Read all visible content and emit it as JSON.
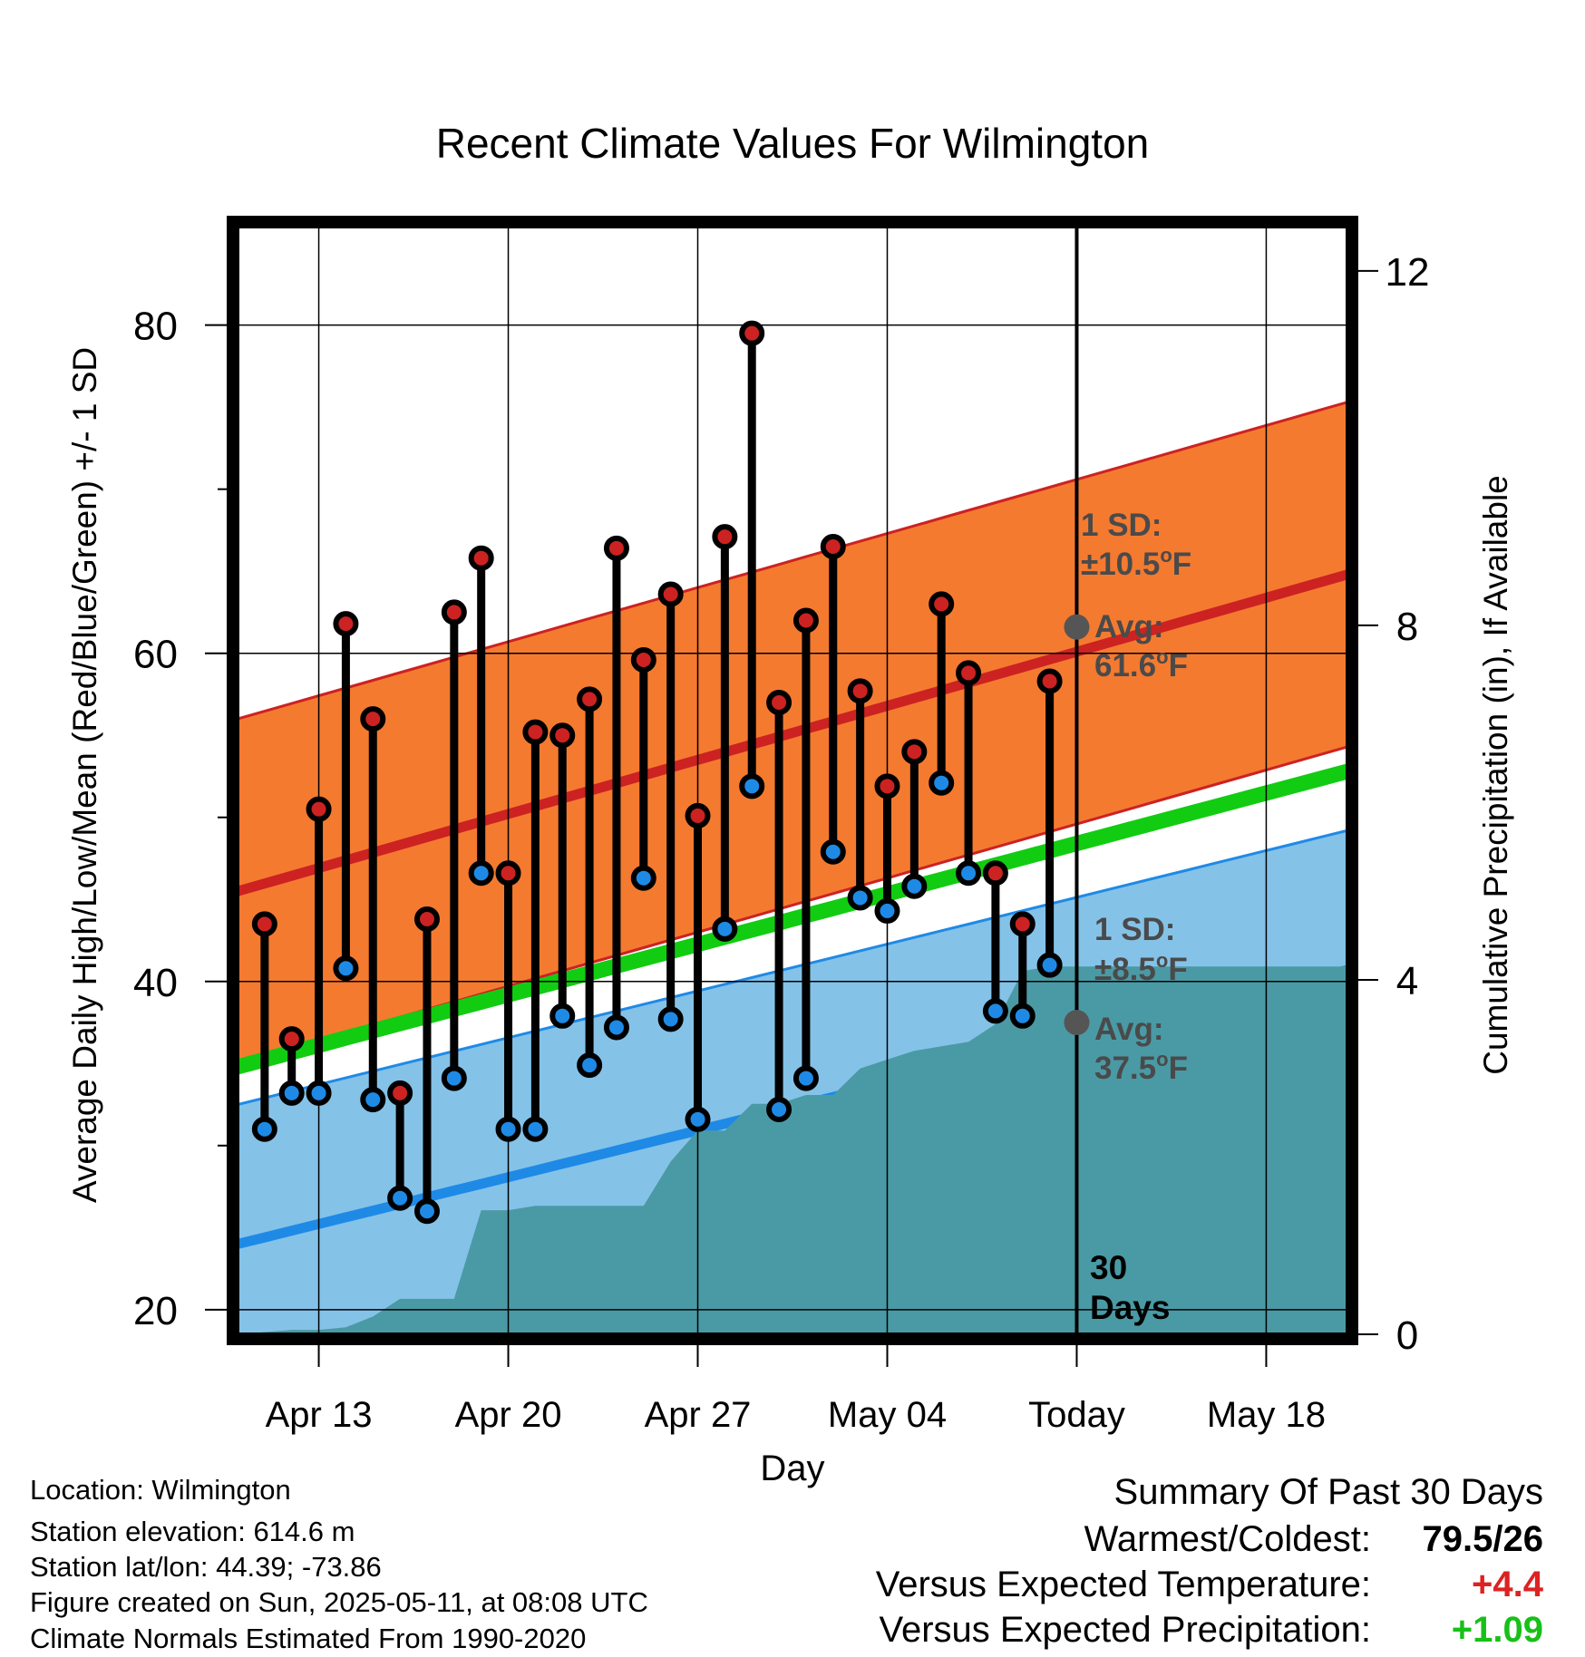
{
  "chart_data": {
    "type": "line",
    "title": "Recent Climate Values For Wilmington",
    "xlabel": "Day",
    "ylabel": "Average Daily High/Low/Mean (Red/Blue/Green) +/- 1 SD",
    "y2label": "Cumulative Precipitation (in), If Available",
    "x_ticks": [
      "Apr 13",
      "Apr 20",
      "Apr 27",
      "May 04",
      "Today",
      "May 18"
    ],
    "y_ticks": [
      20,
      40,
      60,
      80
    ],
    "y2_ticks": [
      0,
      4,
      8,
      12
    ],
    "ylim": [
      18.5,
      86
    ],
    "y2lim": [
      0,
      12.5
    ],
    "x_day_range": [
      "Apr 10",
      "May 21"
    ],
    "today": "May 11",
    "days": [
      "Apr 11",
      "Apr 12",
      "Apr 13",
      "Apr 14",
      "Apr 15",
      "Apr 16",
      "Apr 17",
      "Apr 18",
      "Apr 19",
      "Apr 20",
      "Apr 21",
      "Apr 22",
      "Apr 23",
      "Apr 24",
      "Apr 25",
      "Apr 26",
      "Apr 27",
      "Apr 28",
      "Apr 29",
      "Apr 30",
      "May 01",
      "May 02",
      "May 03",
      "May 04",
      "May 05",
      "May 06",
      "May 07",
      "May 08",
      "May 09",
      "May 10"
    ],
    "series": [
      {
        "name": "High",
        "color": "#cc2222",
        "values": [
          43.5,
          36.5,
          50.5,
          61.8,
          56.0,
          33.2,
          43.8,
          62.5,
          65.8,
          46.6,
          55.2,
          55.0,
          57.2,
          66.4,
          59.6,
          63.6,
          50.1,
          67.1,
          79.5,
          57.0,
          62.0,
          66.5,
          57.7,
          51.9,
          54.0,
          63.0,
          58.8,
          46.6,
          43.5,
          58.3
        ]
      },
      {
        "name": "Low",
        "color": "#1e8ae6",
        "values": [
          31.0,
          33.2,
          33.2,
          40.8,
          32.8,
          26.8,
          26.0,
          34.1,
          46.6,
          31.0,
          31.0,
          37.9,
          34.9,
          37.2,
          46.3,
          37.7,
          31.6,
          43.2,
          51.9,
          32.2,
          34.1,
          47.9,
          45.1,
          44.3,
          45.8,
          52.1,
          46.6,
          38.2,
          37.9,
          41.0
        ]
      }
    ],
    "normals": {
      "start_day": "Apr 10",
      "end_day": "May 21",
      "high_mean": [
        45.5,
        64.8
      ],
      "high_sd": 10.5,
      "low_mean": [
        24.0,
        40.7
      ],
      "low_sd": 8.5,
      "mean": [
        34.8,
        52.8
      ],
      "band_colors": {
        "high": "#f47a30",
        "low": "#85c2e8",
        "mean": "#12cc12"
      }
    },
    "precip_cumulative": {
      "color": "#4a9aa5",
      "days": [
        "Apr 10",
        "Apr 12",
        "Apr 13",
        "Apr 14",
        "Apr 15",
        "Apr 16",
        "Apr 17",
        "Apr 18",
        "Apr 19",
        "Apr 20",
        "Apr 21",
        "Apr 22",
        "Apr 23",
        "Apr 24",
        "Apr 25",
        "Apr 26",
        "Apr 27",
        "Apr 28",
        "Apr 29",
        "Apr 30",
        "May 01",
        "May 02",
        "May 03",
        "May 04",
        "May 05",
        "May 06",
        "May 07",
        "May 08",
        "May 09",
        "May 10",
        "May 11",
        "May 21"
      ],
      "values": [
        0,
        0.05,
        0.05,
        0.08,
        0.2,
        0.4,
        0.4,
        0.4,
        1.4,
        1.4,
        1.45,
        1.45,
        1.45,
        1.45,
        1.45,
        1.95,
        2.3,
        2.3,
        2.6,
        2.6,
        2.7,
        2.7,
        3.0,
        3.1,
        3.2,
        3.25,
        3.3,
        3.5,
        4.1,
        4.15,
        4.15,
        4.15
      ]
    },
    "grid": true
  },
  "annotations": {
    "high_sd_line1": "1 SD:",
    "high_sd_line2": "±10.5",
    "high_avg_line1": "Avg:",
    "high_avg_line2": "61.6",
    "low_sd_line1": "1 SD:",
    "low_sd_line2": "±8.5",
    "low_avg_line1": "Avg:",
    "low_avg_line2": "37.5",
    "deg_unit": "o",
    "f_unit": "F",
    "days_line1": "30",
    "days_line2": "Days",
    "avg_high_value": 61.6,
    "avg_low_value": 37.5
  },
  "info": {
    "location": "Location: Wilmington",
    "elevation": "Station elevation: 614.6 m",
    "latlon": "Station lat/lon: 44.39; -73.86",
    "created": "Figure created on Sun, 2025-05-11, at 08:08 UTC",
    "normals": "Climate Normals Estimated From 1990-2020"
  },
  "summary": {
    "title": "Summary Of Past 30 Days",
    "warm_cold_label": "Warmest/Coldest:",
    "warm_cold_value": "79.5/26",
    "temp_label": "Versus Expected Temperature:",
    "temp_value": "+4.4",
    "temp_color": "#dd2222",
    "precip_label": "Versus Expected Precipitation:",
    "precip_value": "+1.09",
    "precip_color": "#18c018"
  }
}
